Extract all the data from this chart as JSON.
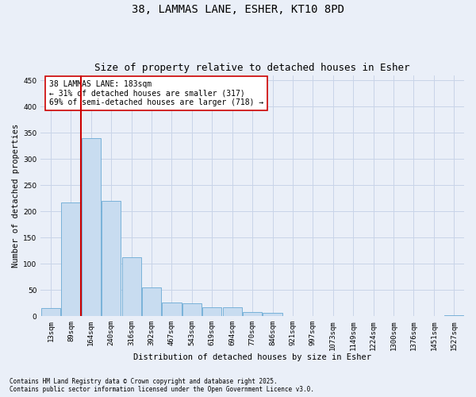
{
  "title_line1": "38, LAMMAS LANE, ESHER, KT10 8PD",
  "title_line2": "Size of property relative to detached houses in Esher",
  "xlabel": "Distribution of detached houses by size in Esher",
  "ylabel": "Number of detached properties",
  "categories": [
    "13sqm",
    "89sqm",
    "164sqm",
    "240sqm",
    "316sqm",
    "392sqm",
    "467sqm",
    "543sqm",
    "619sqm",
    "694sqm",
    "770sqm",
    "846sqm",
    "921sqm",
    "997sqm",
    "1073sqm",
    "1149sqm",
    "1224sqm",
    "1300sqm",
    "1376sqm",
    "1451sqm",
    "1527sqm"
  ],
  "values": [
    15,
    217,
    340,
    220,
    112,
    55,
    26,
    25,
    17,
    17,
    8,
    6,
    0,
    0,
    0,
    0,
    0,
    1,
    0,
    0,
    2
  ],
  "bar_color": "#c8dcf0",
  "bar_edge_color": "#6aaad4",
  "vline_color": "#cc0000",
  "vline_x_index": 2,
  "annotation_text": "38 LAMMAS LANE: 183sqm\n← 31% of detached houses are smaller (317)\n69% of semi-detached houses are larger (718) →",
  "annotation_box_color": "white",
  "annotation_box_edge": "#cc0000",
  "ylim": [
    0,
    460
  ],
  "yticks": [
    0,
    50,
    100,
    150,
    200,
    250,
    300,
    350,
    400,
    450
  ],
  "grid_color": "#c8d4e8",
  "background_color": "#eaeff8",
  "footer_line1": "Contains HM Land Registry data © Crown copyright and database right 2025.",
  "footer_line2": "Contains public sector information licensed under the Open Government Licence v3.0.",
  "title_fontsize": 10,
  "subtitle_fontsize": 9,
  "axis_label_fontsize": 7.5,
  "tick_fontsize": 6.5,
  "annotation_fontsize": 7,
  "footer_fontsize": 5.5
}
